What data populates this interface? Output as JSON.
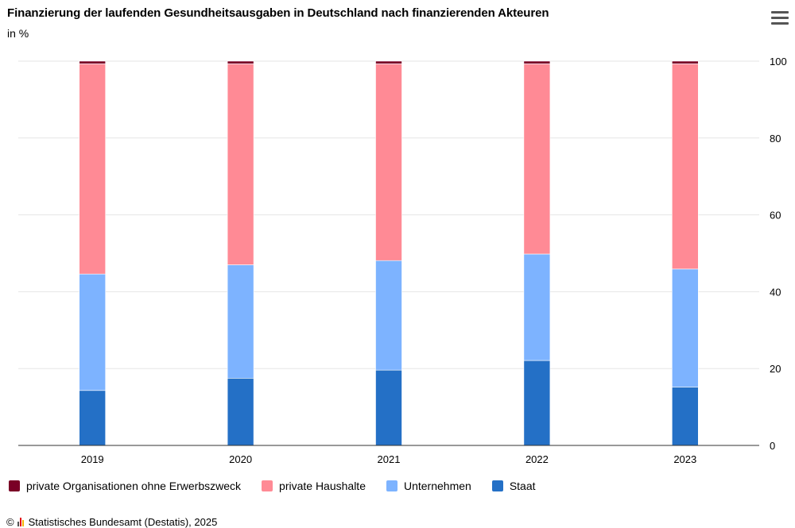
{
  "header": {
    "title": "Finanzierung der laufenden Gesundheitsausgaben in Deutschland nach finanzierenden Akteuren",
    "subtitle": "in %",
    "menu_icon": "hamburger-menu-icon"
  },
  "legend": {
    "items": [
      {
        "label": "private Organisationen ohne Erwerbszweck",
        "color": "#7a0026"
      },
      {
        "label": "private Haushalte",
        "color": "#ff8a95"
      },
      {
        "label": "Unternehmen",
        "color": "#7db3ff"
      },
      {
        "label": "Staat",
        "color": "#2470c6"
      }
    ]
  },
  "footer": {
    "copyright": "©",
    "logo_icon": "destatis-logo-icon",
    "source": "Statistisches Bundesamt (Destatis), 2025"
  },
  "chart_data": {
    "type": "bar",
    "stacked": true,
    "categories": [
      "2019",
      "2020",
      "2021",
      "2022",
      "2023"
    ],
    "series": [
      {
        "name": "Staat",
        "color": "#2470c6",
        "values": [
          14.3,
          17.5,
          19.6,
          22.1,
          15.2
        ]
      },
      {
        "name": "Unternehmen",
        "color": "#7db3ff",
        "values": [
          30.3,
          29.5,
          28.5,
          27.7,
          30.7
        ]
      },
      {
        "name": "private Haushalte",
        "color": "#ff8a95",
        "values": [
          54.7,
          52.3,
          51.2,
          49.5,
          53.4
        ]
      },
      {
        "name": "private Organisationen ohne Erwerbszweck",
        "color": "#7a0026",
        "values": [
          0.7,
          0.7,
          0.7,
          0.7,
          0.7
        ]
      }
    ],
    "ylim": [
      0,
      100
    ],
    "yticks": [
      0,
      20,
      40,
      60,
      80,
      100
    ],
    "y_axis_position": "right",
    "grid": true,
    "legend_position": "bottom-left"
  }
}
